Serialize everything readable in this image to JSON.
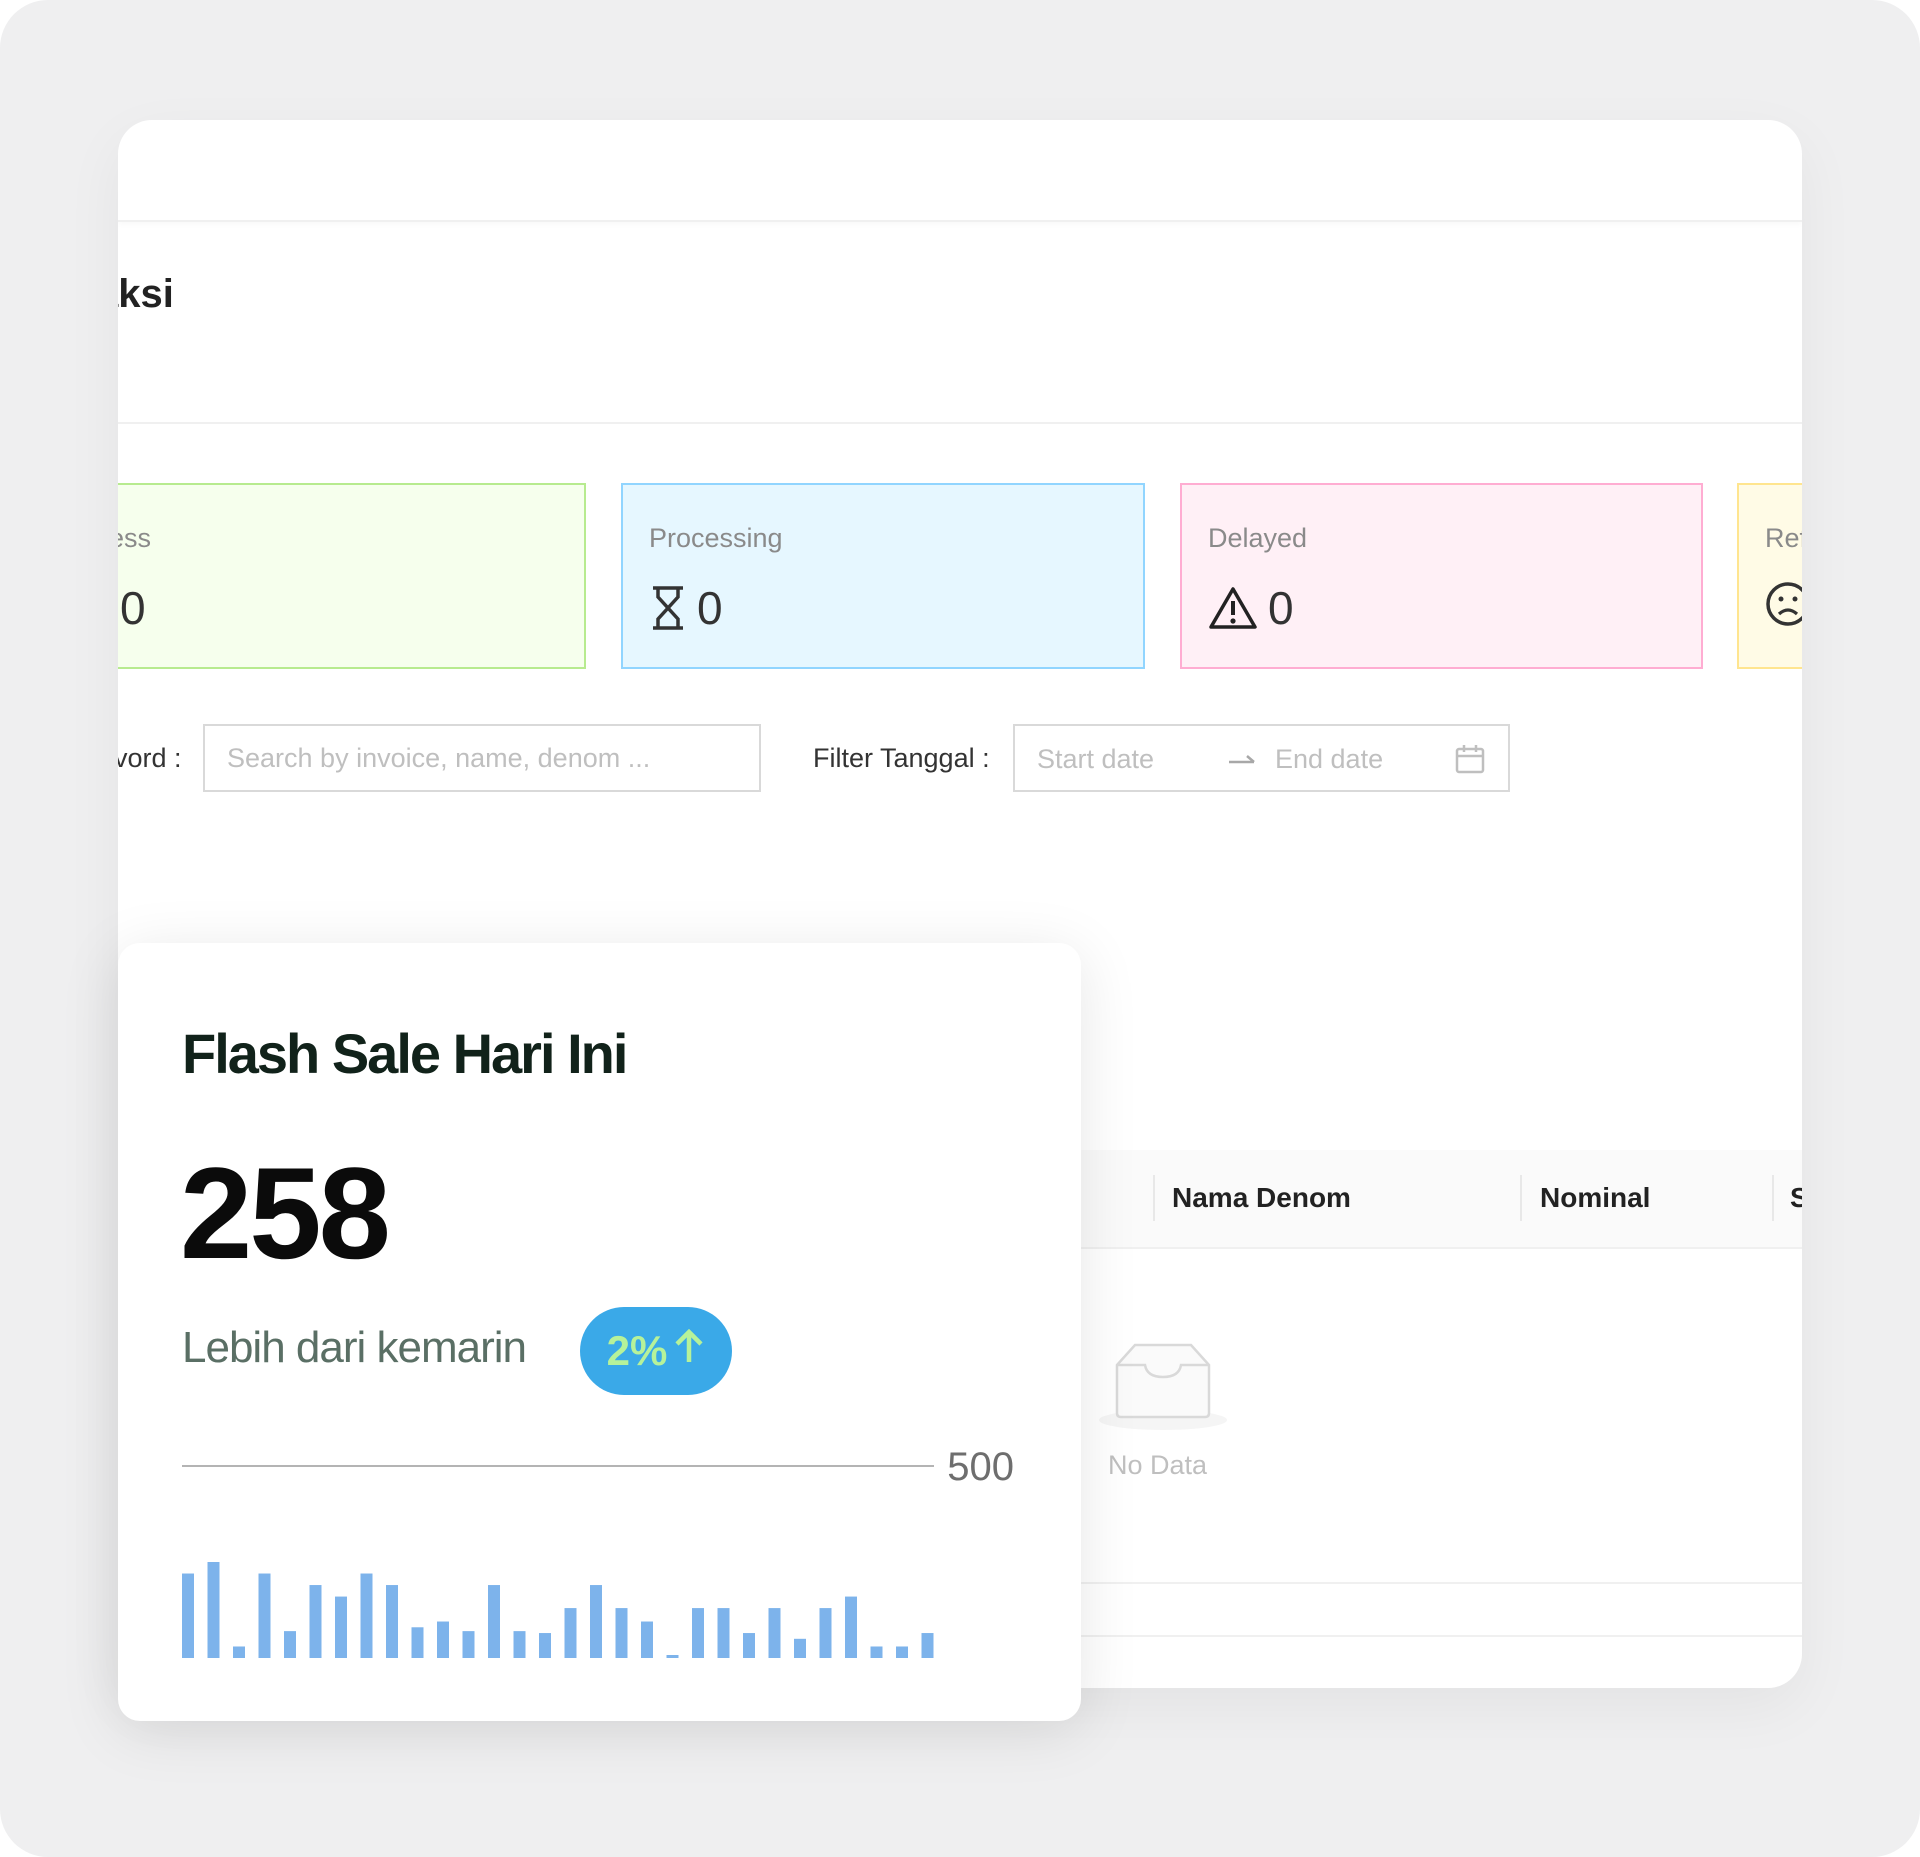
{
  "page": {
    "title": "aksi"
  },
  "stats": [
    {
      "key": "success",
      "label": "ccess",
      "value": "0",
      "icon": "success-icon"
    },
    {
      "key": "processing",
      "label": "Processing",
      "value": "0",
      "icon": "hourglass-icon"
    },
    {
      "key": "delayed",
      "label": "Delayed",
      "value": "0",
      "icon": "warning-icon"
    },
    {
      "key": "refund",
      "label": "Ref",
      "icon": "frown-icon"
    }
  ],
  "filters": {
    "keyword_label": "vord :",
    "keyword_placeholder": "Search by invoice, name, denom ...",
    "date_label": "Filter Tanggal :",
    "start_placeholder": "Start date",
    "end_placeholder": "End date"
  },
  "table": {
    "columns": [
      "Nama Denom",
      "Nominal",
      "S"
    ],
    "empty_text": "No Data"
  },
  "flash_sale": {
    "title": "Flash Sale Hari Ini",
    "value": "258",
    "compare_text": "Lebih dari kemarin",
    "badge": "2%",
    "badge_icon": "arrow-up-icon",
    "chart_data": {
      "type": "bar",
      "ylim": [
        0,
        500
      ],
      "y_ticks": [
        "500"
      ],
      "values": [
        220,
        250,
        30,
        220,
        70,
        190,
        160,
        220,
        190,
        80,
        95,
        70,
        190,
        70,
        65,
        130,
        190,
        130,
        95,
        5,
        130,
        130,
        65,
        130,
        50,
        130,
        160,
        30,
        30,
        65
      ],
      "color": "#7db3eb"
    }
  },
  "colors": {
    "success_bg": "#f6ffed",
    "success_border": "#b7eb8f",
    "processing_bg": "#e6f7ff",
    "processing_border": "#91d5ff",
    "delayed_bg": "#fff0f6",
    "delayed_border": "#ffadd2",
    "refund_bg": "#fffbe6",
    "refund_border": "#ffe58f",
    "badge_bg": "#3aa9e8",
    "badge_text": "#b6f29a"
  }
}
